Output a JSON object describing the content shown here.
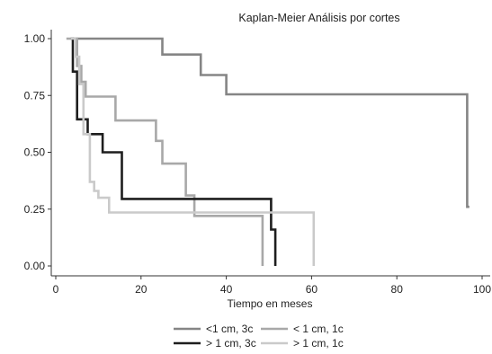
{
  "chart_data": {
    "type": "line",
    "title": "Kaplan-Meier Análisis por cortes",
    "xlabel": "Tiempo en meses",
    "ylabel": "",
    "xlim": [
      0,
      100
    ],
    "ylim": [
      0,
      1
    ],
    "x_ticks": [
      "0",
      "20",
      "40",
      "60",
      "80",
      "100"
    ],
    "y_ticks": [
      "0.00",
      "0.25",
      "0.50",
      "0.75",
      "1.00"
    ],
    "grid": false,
    "legend_position": "bottom",
    "series": [
      {
        "name": "<1 cm, 3c",
        "color": "#858585",
        "step": true,
        "points": [
          [
            4,
            1.0
          ],
          [
            25,
            1.0
          ],
          [
            25,
            0.93
          ],
          [
            34,
            0.93
          ],
          [
            34,
            0.84
          ],
          [
            40,
            0.84
          ],
          [
            40,
            0.755
          ],
          [
            96.5,
            0.755
          ],
          [
            96.5,
            0.26
          ],
          [
            97,
            0.26
          ]
        ]
      },
      {
        "name": "< 1 cm, 1c",
        "color": "#a8a8a8",
        "step": true,
        "points": [
          [
            2.5,
            1.0
          ],
          [
            5,
            1.0
          ],
          [
            5,
            0.88
          ],
          [
            6,
            0.88
          ],
          [
            6,
            0.81
          ],
          [
            7,
            0.81
          ],
          [
            7,
            0.745
          ],
          [
            14,
            0.745
          ],
          [
            14,
            0.64
          ],
          [
            23.5,
            0.64
          ],
          [
            23.5,
            0.55
          ],
          [
            25,
            0.55
          ],
          [
            25,
            0.45
          ],
          [
            30.5,
            0.45
          ],
          [
            30.5,
            0.31
          ],
          [
            32.5,
            0.31
          ],
          [
            32.5,
            0.22
          ],
          [
            48.5,
            0.22
          ],
          [
            48.5,
            0.0
          ]
        ]
      },
      {
        "name": "> 1 cm, 3c",
        "color": "#1e1e1e",
        "step": true,
        "points": [
          [
            3.5,
            1.0
          ],
          [
            4,
            1.0
          ],
          [
            4,
            0.855
          ],
          [
            5,
            0.855
          ],
          [
            5,
            0.645
          ],
          [
            7.5,
            0.645
          ],
          [
            7.5,
            0.58
          ],
          [
            11,
            0.58
          ],
          [
            11,
            0.5
          ],
          [
            15.5,
            0.5
          ],
          [
            15.5,
            0.295
          ],
          [
            50.5,
            0.295
          ],
          [
            50.5,
            0.16
          ],
          [
            51.5,
            0.16
          ],
          [
            51.5,
            0.0
          ]
        ]
      },
      {
        "name": "> 1 cm, 1c",
        "color": "#cacaca",
        "step": true,
        "points": [
          [
            3.5,
            1.0
          ],
          [
            4.5,
            1.0
          ],
          [
            4.5,
            0.92
          ],
          [
            5.5,
            0.92
          ],
          [
            5.5,
            0.8
          ],
          [
            6.5,
            0.8
          ],
          [
            6.5,
            0.58
          ],
          [
            8,
            0.58
          ],
          [
            8,
            0.37
          ],
          [
            9,
            0.37
          ],
          [
            9,
            0.33
          ],
          [
            10,
            0.33
          ],
          [
            10,
            0.3
          ],
          [
            12.5,
            0.3
          ],
          [
            12.5,
            0.235
          ],
          [
            60.5,
            0.235
          ],
          [
            60.5,
            0.0
          ]
        ]
      }
    ]
  }
}
